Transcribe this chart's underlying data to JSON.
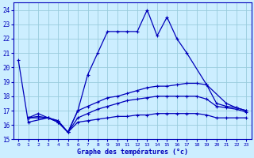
{
  "title": "Graphe des températures (°c)",
  "background_color": "#cceeff",
  "grid_color": "#99ccdd",
  "line_color": "#0000bb",
  "xlim": [
    -0.5,
    23.5
  ],
  "ylim": [
    15,
    24.5
  ],
  "yticks": [
    15,
    16,
    17,
    18,
    19,
    20,
    21,
    22,
    23,
    24
  ],
  "xticks": [
    0,
    1,
    2,
    3,
    4,
    5,
    6,
    7,
    8,
    9,
    10,
    11,
    12,
    13,
    14,
    15,
    16,
    17,
    18,
    19,
    20,
    21,
    22,
    23
  ],
  "xtick_labels": [
    "0",
    "1",
    "2",
    "3",
    "4",
    "5",
    "6",
    "7",
    "8",
    "9",
    "10",
    "11",
    "12",
    "13",
    "14",
    "15",
    "16",
    "17",
    "18",
    "19",
    "20",
    "21",
    "22",
    "23"
  ],
  "series": [
    {
      "x": [
        0,
        1,
        3,
        4,
        5,
        6,
        7,
        8,
        9,
        10,
        11,
        12,
        13,
        14,
        15,
        16,
        17,
        19,
        21,
        22,
        23
      ],
      "y": [
        20.5,
        16.2,
        16.5,
        16.3,
        15.5,
        17.0,
        19.5,
        21.0,
        22.5,
        22.5,
        22.5,
        22.5,
        24.0,
        22.2,
        23.5,
        22.0,
        21.0,
        18.8,
        17.5,
        17.2,
        17.0
      ]
    },
    {
      "x": [
        1,
        2,
        3,
        4,
        5,
        6,
        7,
        8,
        9,
        10,
        11,
        12,
        13,
        14,
        15,
        16,
        17,
        18,
        19,
        20,
        21,
        22,
        23
      ],
      "y": [
        16.5,
        16.8,
        16.5,
        16.3,
        15.5,
        17.0,
        17.3,
        17.6,
        17.9,
        18.0,
        18.2,
        18.4,
        18.6,
        18.7,
        18.7,
        18.8,
        18.9,
        18.9,
        18.8,
        17.5,
        17.3,
        17.2,
        17.0
      ]
    },
    {
      "x": [
        1,
        2,
        3,
        4,
        5,
        6,
        7,
        8,
        9,
        10,
        11,
        12,
        13,
        14,
        15,
        16,
        17,
        18,
        19,
        20,
        21,
        22,
        23
      ],
      "y": [
        16.5,
        16.6,
        16.5,
        16.2,
        15.5,
        16.5,
        16.8,
        17.1,
        17.3,
        17.5,
        17.7,
        17.8,
        17.9,
        18.0,
        18.0,
        18.0,
        18.0,
        18.0,
        17.8,
        17.3,
        17.2,
        17.1,
        16.9
      ]
    },
    {
      "x": [
        1,
        2,
        3,
        4,
        5,
        6,
        7,
        8,
        9,
        10,
        11,
        12,
        13,
        14,
        15,
        16,
        17,
        18,
        19,
        20,
        21,
        22,
        23
      ],
      "y": [
        16.5,
        16.5,
        16.5,
        16.2,
        15.5,
        16.2,
        16.3,
        16.4,
        16.5,
        16.6,
        16.6,
        16.7,
        16.7,
        16.8,
        16.8,
        16.8,
        16.8,
        16.8,
        16.7,
        16.5,
        16.5,
        16.5,
        16.5
      ]
    }
  ]
}
